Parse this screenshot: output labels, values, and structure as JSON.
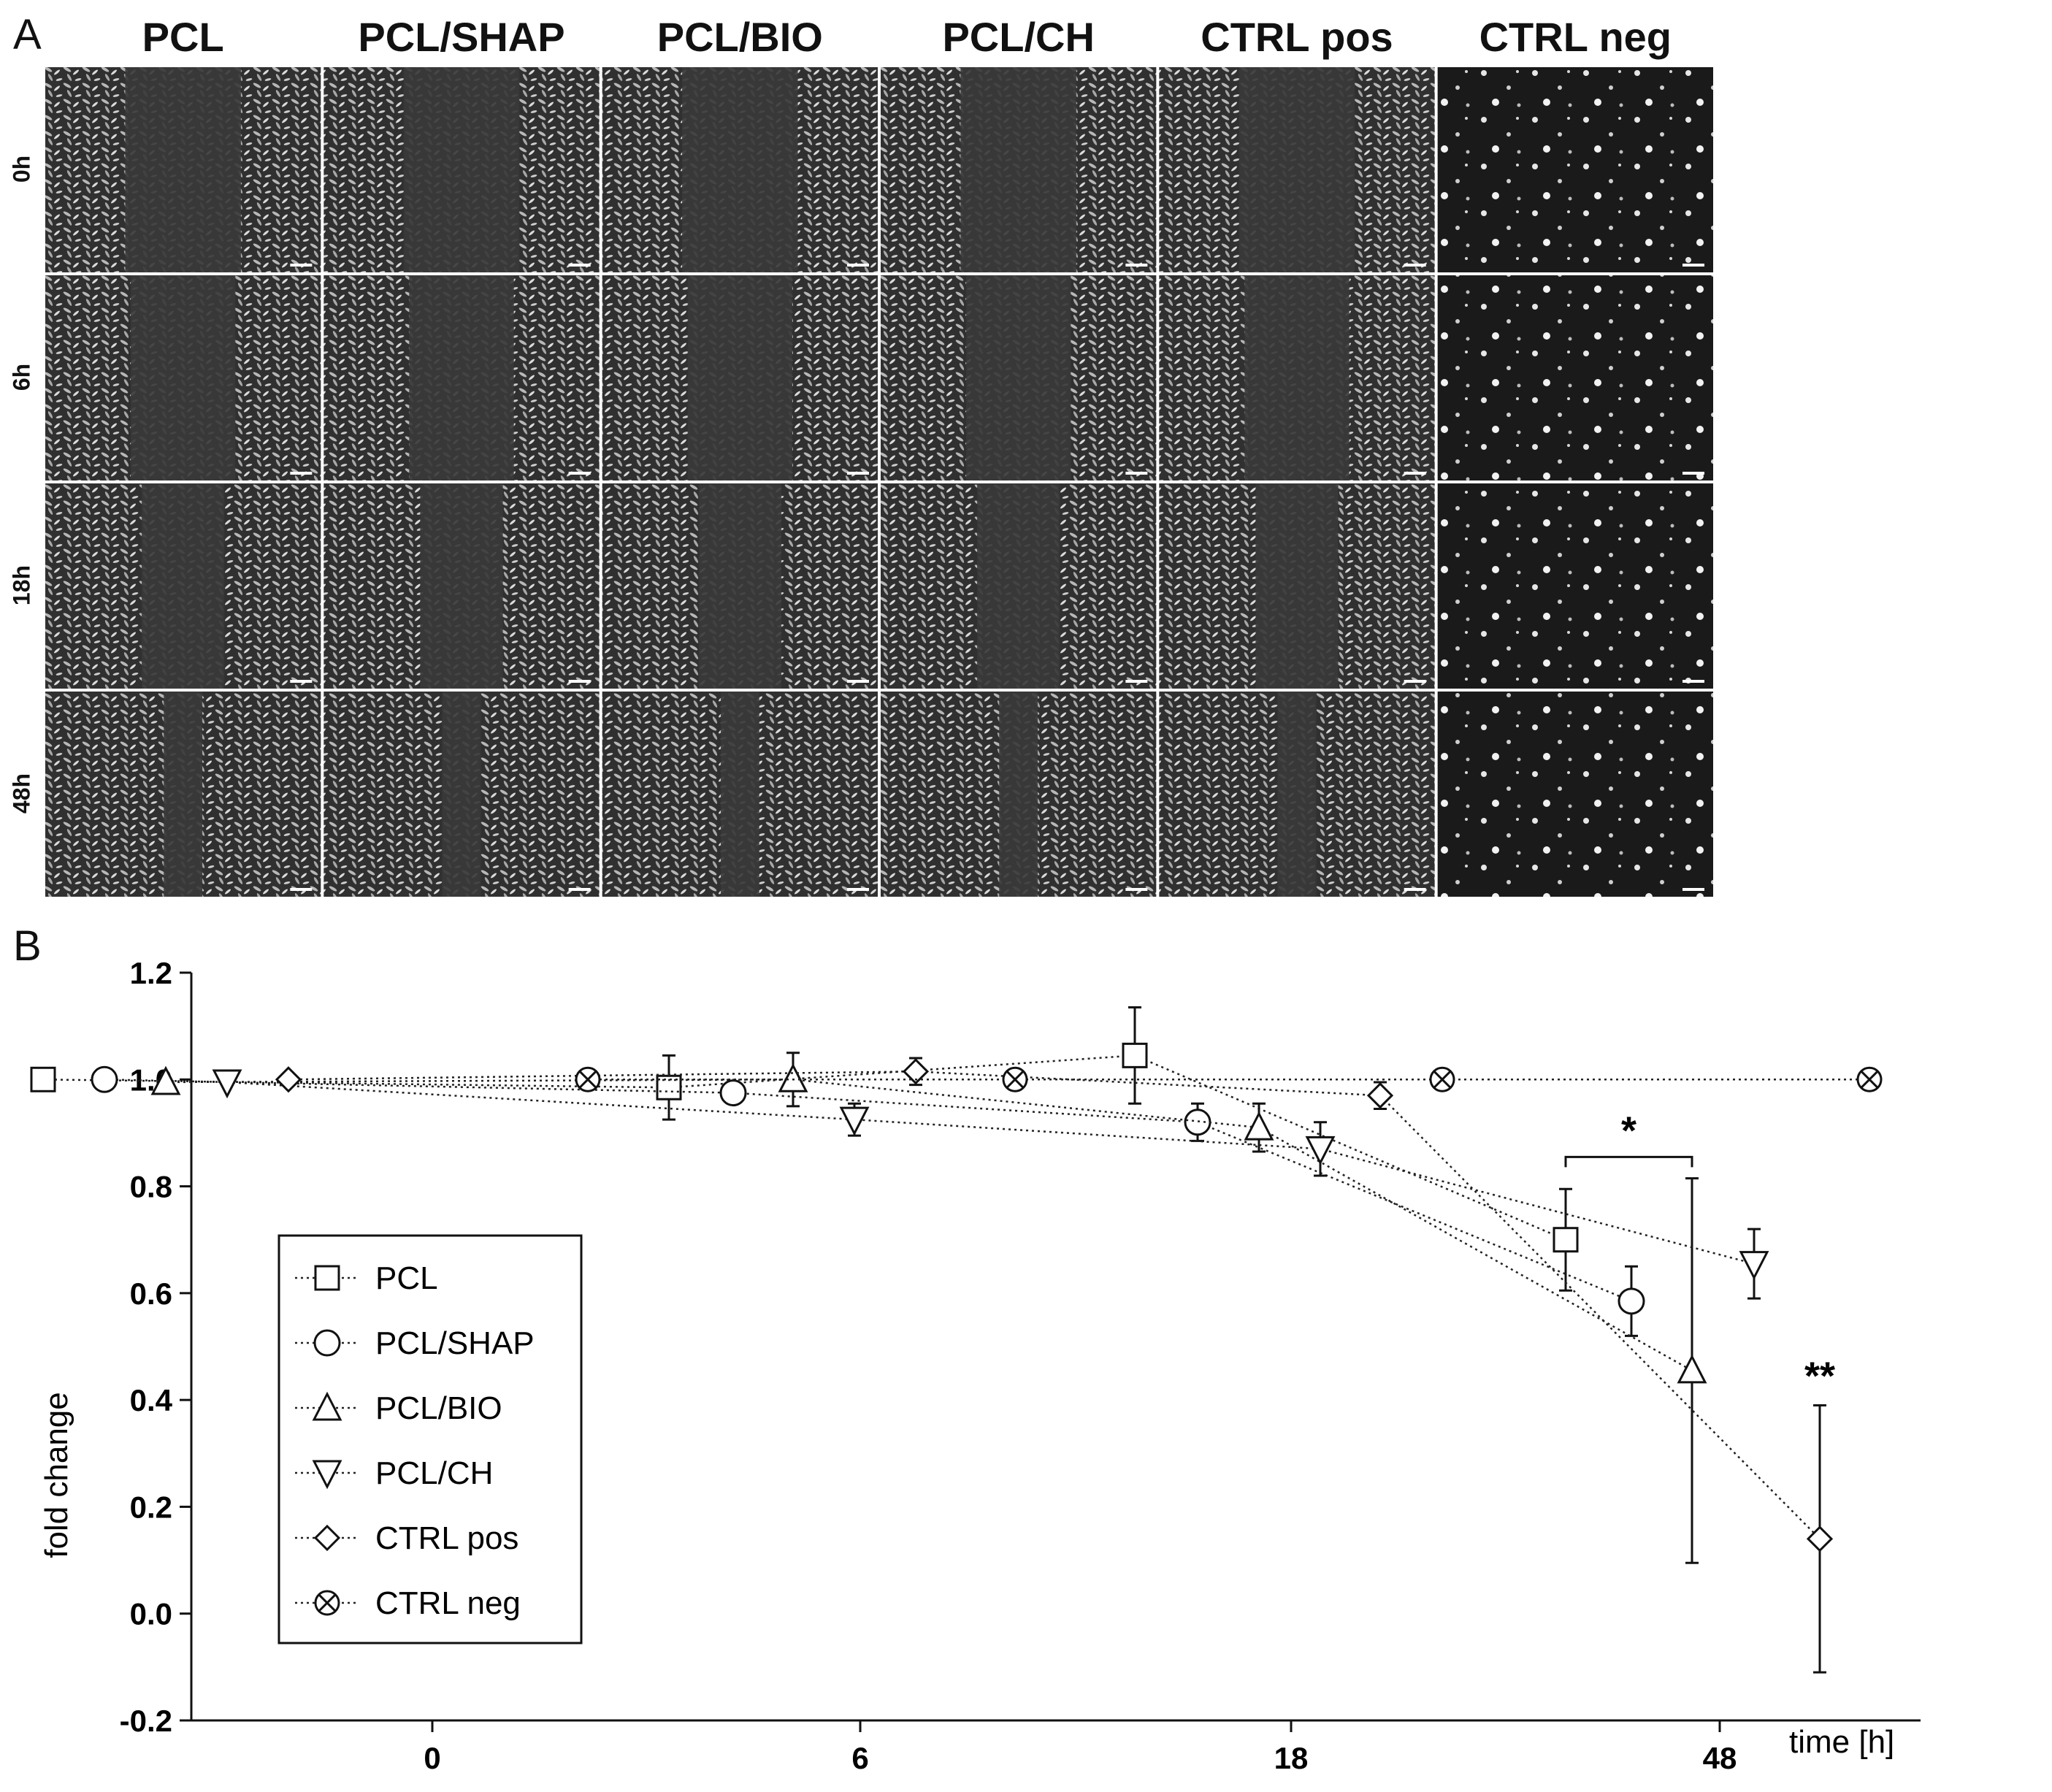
{
  "panel_a": {
    "letter": "A",
    "columns": [
      "PCL",
      "PCL/SHAP",
      "PCL/BIO",
      "PCL/CH",
      "CTRL pos",
      "CTRL neg"
    ],
    "rows": [
      "0h",
      "6h",
      "18h",
      "48h"
    ]
  },
  "panel_b": {
    "letter": "B"
  },
  "chart_data": {
    "type": "scatter",
    "title": "",
    "xlabel": "time [h]",
    "ylabel": "fold change",
    "x_categories": [
      "0",
      "6",
      "18",
      "48"
    ],
    "ylim": [
      -0.2,
      1.2
    ],
    "yticks": [
      "-0.2",
      "0.0",
      "0.2",
      "0.4",
      "0.6",
      "0.8",
      "1.0",
      "1.2"
    ],
    "grid": false,
    "legend_position": "left",
    "series": [
      {
        "name": "PCL",
        "marker": "square",
        "points": [
          {
            "time": "0",
            "y": 1.0
          },
          {
            "time": "6",
            "y": 0.985,
            "err": 0.06
          },
          {
            "time": "18",
            "y": 1.045,
            "err": 0.09
          },
          {
            "time": "48",
            "y": 0.7,
            "err": 0.095
          }
        ]
      },
      {
        "name": "PCL/SHAP",
        "marker": "circle",
        "points": [
          {
            "time": "0",
            "y": 1.0
          },
          {
            "time": "6",
            "y": 0.975,
            "err": 0.02
          },
          {
            "time": "18",
            "y": 0.92,
            "err": 0.035
          },
          {
            "time": "48",
            "y": 0.585,
            "err": 0.065
          }
        ]
      },
      {
        "name": "PCL/BIO",
        "marker": "triangle-up",
        "points": [
          {
            "time": "0",
            "y": 0.995
          },
          {
            "time": "6",
            "y": 1.0,
            "err": 0.05
          },
          {
            "time": "18",
            "y": 0.91,
            "err": 0.045
          },
          {
            "time": "48",
            "y": 0.455,
            "err": 0.36
          }
        ]
      },
      {
        "name": "PCL/CH",
        "marker": "triangle-down",
        "points": [
          {
            "time": "0",
            "y": 0.995
          },
          {
            "time": "6",
            "y": 0.925,
            "err": 0.03
          },
          {
            "time": "18",
            "y": 0.87,
            "err": 0.05
          },
          {
            "time": "48",
            "y": 0.655,
            "err": 0.065
          }
        ]
      },
      {
        "name": "CTRL pos",
        "marker": "diamond",
        "points": [
          {
            "time": "0",
            "y": 1.0
          },
          {
            "time": "6",
            "y": 1.015,
            "err": 0.025
          },
          {
            "time": "18",
            "y": 0.97,
            "err": 0.025
          },
          {
            "time": "48",
            "y": 0.14,
            "err": 0.25
          }
        ]
      },
      {
        "name": "CTRL neg",
        "marker": "circle-x",
        "points": [
          {
            "time": "0",
            "y": 1.0
          },
          {
            "time": "6",
            "y": 1.0
          },
          {
            "time": "18",
            "y": 1.0
          },
          {
            "time": "48",
            "y": 1.0
          }
        ]
      }
    ],
    "annotations": [
      {
        "text": "*",
        "between": [
          "PCL",
          "PCL/BIO"
        ],
        "time": "48"
      },
      {
        "text": "**",
        "series": "CTRL pos",
        "time": "48"
      }
    ]
  }
}
